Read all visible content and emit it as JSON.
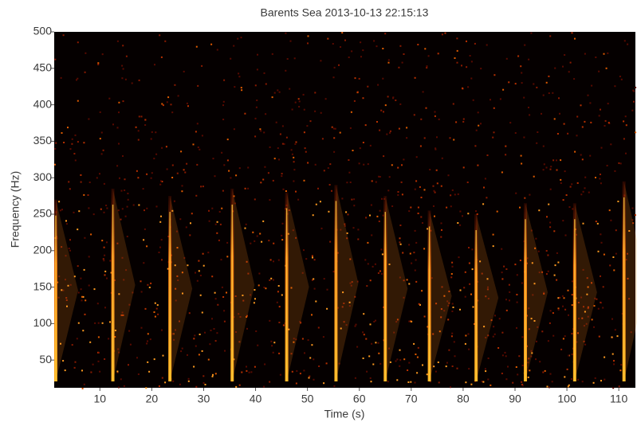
{
  "chart_data": {
    "type": "spectrogram",
    "title": "Barents Sea 2013-10-13 22:15:13",
    "xlabel": "Time (s)",
    "ylabel": "Frequency (Hz)",
    "x": [
      1.5,
      12.5,
      23.5,
      35.5,
      46,
      55.5,
      65,
      73.5,
      82.5,
      92,
      101.5,
      111
    ],
    "values": [
      270,
      285,
      275,
      285,
      280,
      290,
      275,
      255,
      250,
      265,
      265,
      295
    ],
    "color": "#ff8a1c",
    "xlim": [
      1.2,
      113.2
    ],
    "ylim": [
      12,
      500
    ],
    "xticks": [
      10,
      20,
      30,
      40,
      50,
      60,
      70,
      80,
      90,
      100,
      110
    ],
    "yticks": [
      50,
      100,
      150,
      200,
      250,
      300,
      350,
      400,
      450,
      500
    ]
  }
}
